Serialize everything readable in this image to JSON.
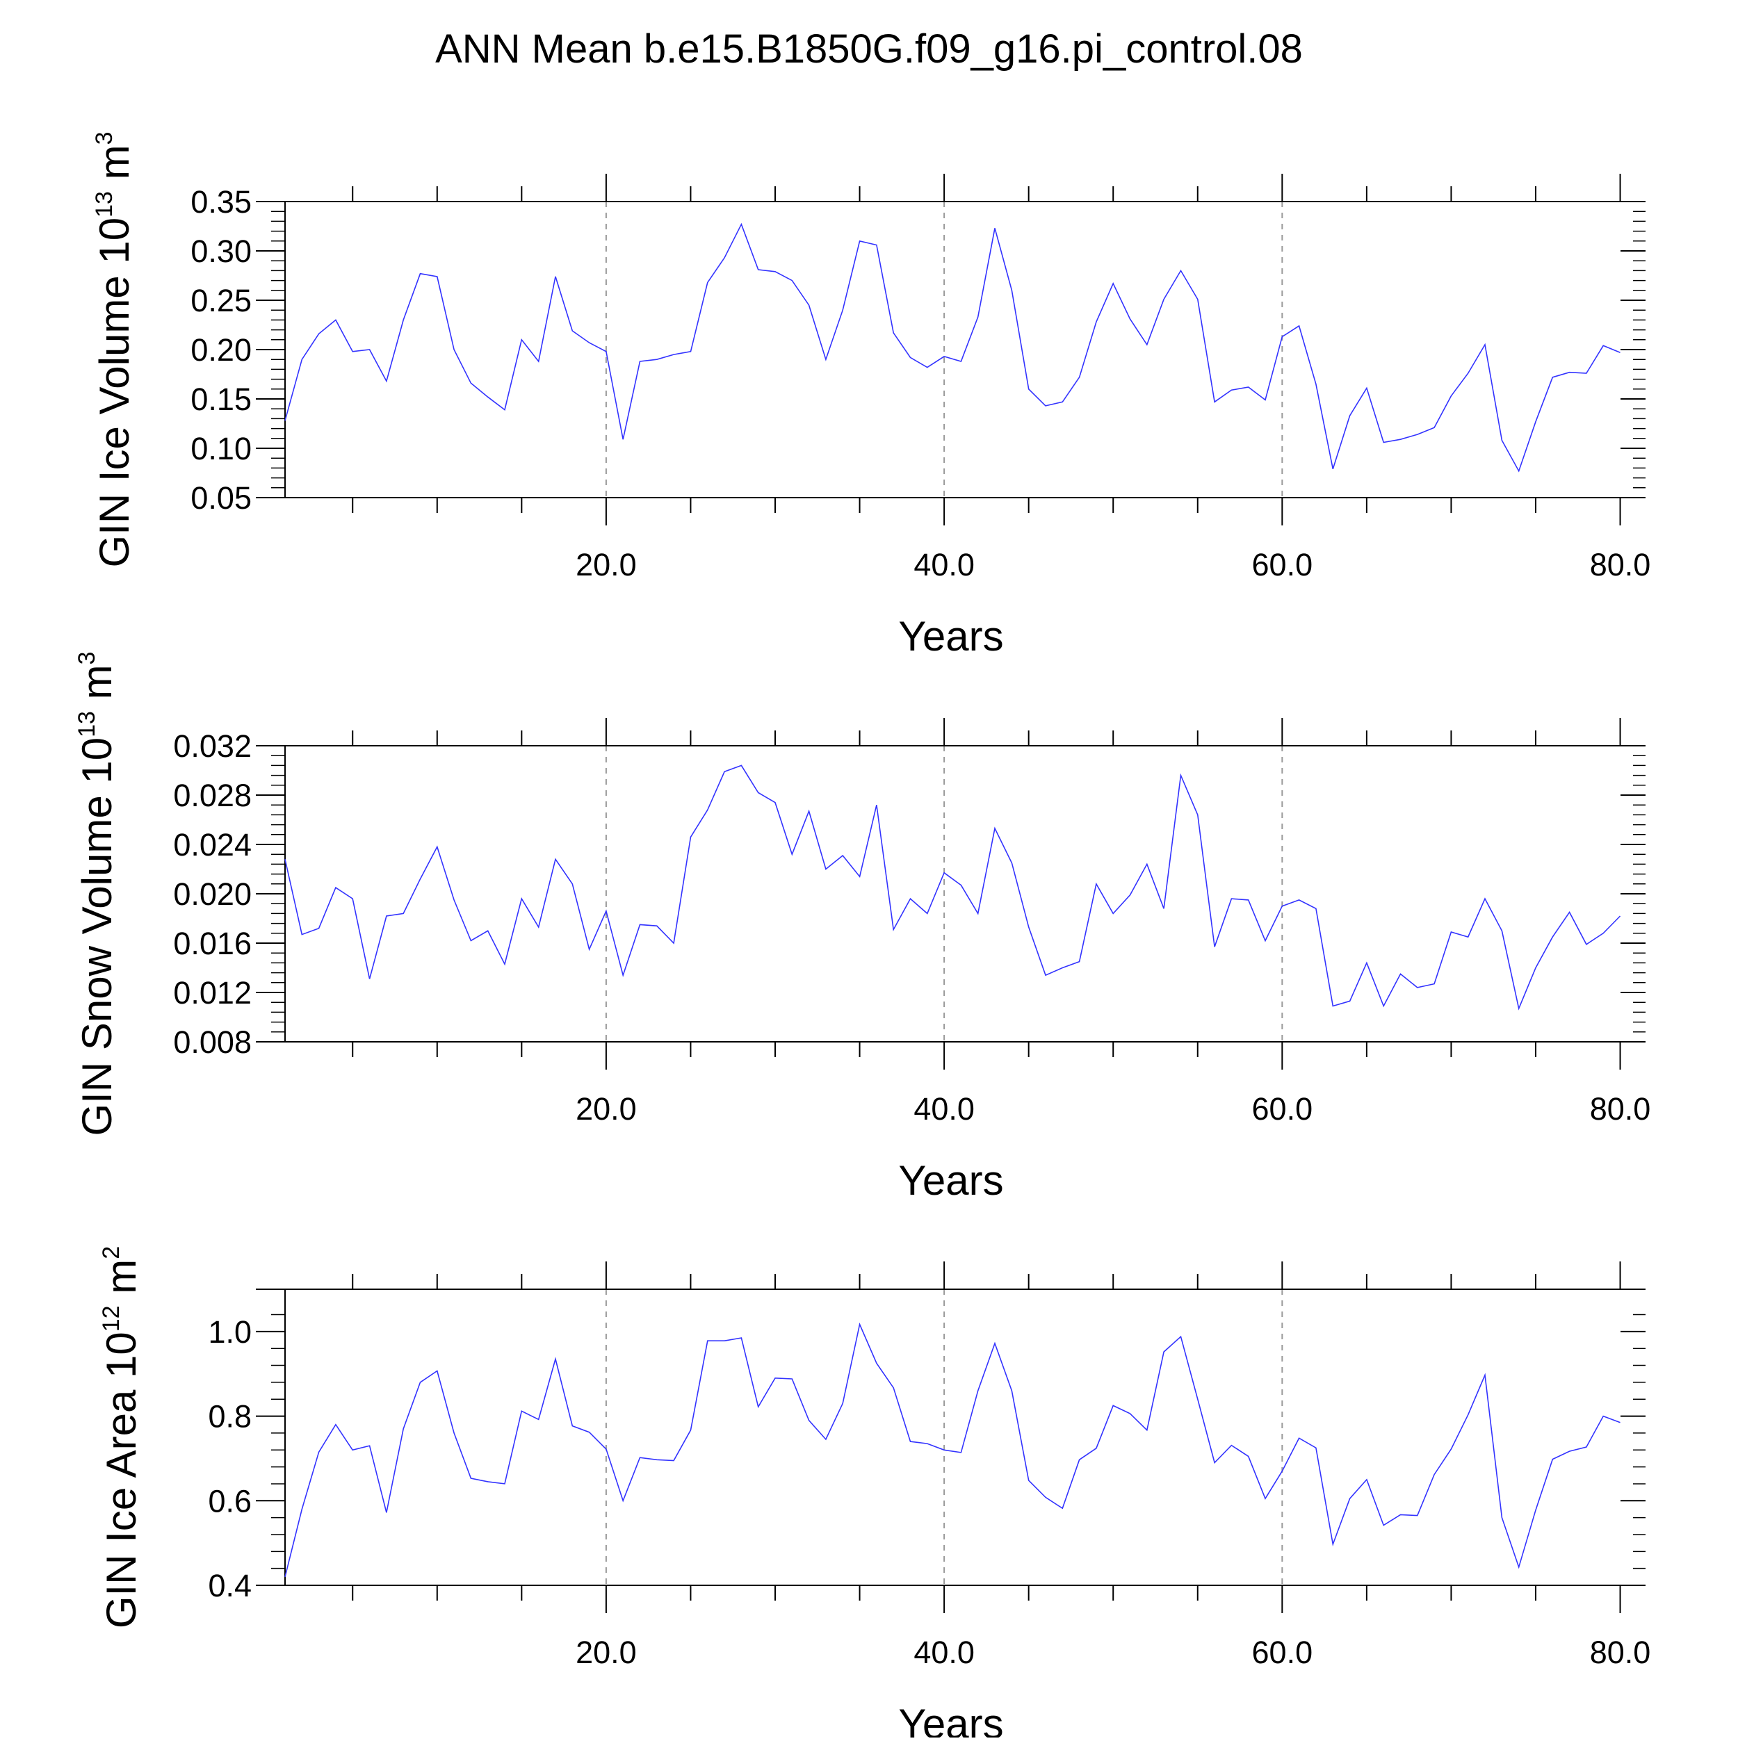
{
  "figure": {
    "title": "ANN Mean b.e15.B1850G.f09_g16.pi_control.08",
    "line_color": "#3333ff",
    "grid_color": "#999999"
  },
  "chart_data": [
    {
      "type": "line",
      "ylabel": "GIN Ice Volume 10",
      "ylabel_exp": "13",
      "ylabel_unit": " m",
      "ylabel_unit_exp": "3",
      "xlabel": "Years",
      "xlim": [
        1,
        81.5
      ],
      "ylim": [
        0.05,
        0.35
      ],
      "xticks": [
        20,
        40,
        60,
        80
      ],
      "xtick_labels": [
        "20.0",
        "40.0",
        "60.0",
        "80.0"
      ],
      "yticks": [
        0.05,
        0.1,
        0.15,
        0.2,
        0.25,
        0.3,
        0.35
      ],
      "ytick_labels": [
        "0.05",
        "0.10",
        "0.15",
        "0.20",
        "0.25",
        "0.30",
        "0.35"
      ],
      "grid": "vertical dashed at 20, 40, 60",
      "series": [
        {
          "x": [
            1,
            2,
            3,
            4,
            5,
            6,
            7,
            8,
            9,
            10,
            11,
            12,
            13,
            14,
            15,
            16,
            17,
            18,
            19,
            20,
            21,
            22,
            23,
            24,
            25,
            26,
            27,
            28,
            29,
            30,
            31,
            32,
            33,
            34,
            35,
            36,
            37,
            38,
            39,
            40,
            41,
            42,
            43,
            44,
            45,
            46,
            47,
            48,
            49,
            50,
            51,
            52,
            53,
            54,
            55,
            56,
            57,
            58,
            59,
            60,
            61,
            62,
            63,
            64,
            65,
            66,
            67,
            68,
            69,
            70,
            71,
            72,
            73,
            74,
            75,
            76,
            77,
            78,
            79,
            80
          ],
          "y": [
            0.128,
            0.19,
            0.216,
            0.23,
            0.198,
            0.2,
            0.168,
            0.23,
            0.277,
            0.274,
            0.2,
            0.166,
            0.152,
            0.139,
            0.21,
            0.188,
            0.274,
            0.219,
            0.207,
            0.198,
            0.109,
            0.188,
            0.19,
            0.195,
            0.198,
            0.268,
            0.293,
            0.327,
            0.281,
            0.279,
            0.27,
            0.245,
            0.19,
            0.24,
            0.31,
            0.306,
            0.217,
            0.192,
            0.182,
            0.193,
            0.188,
            0.233,
            0.323,
            0.26,
            0.16,
            0.143,
            0.147,
            0.172,
            0.228,
            0.267,
            0.231,
            0.205,
            0.251,
            0.28,
            0.251,
            0.147,
            0.159,
            0.162,
            0.149,
            0.213,
            0.224,
            0.165,
            0.079,
            0.133,
            0.161,
            0.106,
            0.109,
            0.114,
            0.121,
            0.153,
            0.176,
            0.205,
            0.108,
            0.077,
            0.127,
            0.172,
            0.177,
            0.176,
            0.204,
            0.197
          ]
        }
      ]
    },
    {
      "type": "line",
      "ylabel": "GIN Snow Volume 10",
      "ylabel_exp": "13",
      "ylabel_unit": " m",
      "ylabel_unit_exp": "3",
      "xlabel": "Years",
      "xlim": [
        1,
        81.5
      ],
      "ylim": [
        0.008,
        0.032
      ],
      "xticks": [
        20,
        40,
        60,
        80
      ],
      "xtick_labels": [
        "20.0",
        "40.0",
        "60.0",
        "80.0"
      ],
      "yticks": [
        0.008,
        0.012,
        0.016,
        0.02,
        0.024,
        0.028,
        0.032
      ],
      "ytick_labels": [
        "0.008",
        "0.012",
        "0.016",
        "0.020",
        "0.024",
        "0.028",
        "0.032"
      ],
      "grid": "vertical dashed at 20, 40, 60",
      "series": [
        {
          "x": [
            1,
            2,
            3,
            4,
            5,
            6,
            7,
            8,
            9,
            10,
            11,
            12,
            13,
            14,
            15,
            16,
            17,
            18,
            19,
            20,
            21,
            22,
            23,
            24,
            25,
            26,
            27,
            28,
            29,
            30,
            31,
            32,
            33,
            34,
            35,
            36,
            37,
            38,
            39,
            40,
            41,
            42,
            43,
            44,
            45,
            46,
            47,
            48,
            49,
            50,
            51,
            52,
            53,
            54,
            55,
            56,
            57,
            58,
            59,
            60,
            61,
            62,
            63,
            64,
            65,
            66,
            67,
            68,
            69,
            70,
            71,
            72,
            73,
            74,
            75,
            76,
            77,
            78,
            79,
            80
          ],
          "y": [
            0.0228,
            0.0167,
            0.0172,
            0.0205,
            0.0196,
            0.0131,
            0.0182,
            0.0184,
            0.0212,
            0.0238,
            0.0195,
            0.0162,
            0.017,
            0.0143,
            0.0196,
            0.0173,
            0.0228,
            0.0208,
            0.0155,
            0.0186,
            0.0134,
            0.0175,
            0.0174,
            0.016,
            0.0246,
            0.0268,
            0.0299,
            0.0304,
            0.0282,
            0.0274,
            0.0232,
            0.0267,
            0.022,
            0.0231,
            0.0214,
            0.0272,
            0.0171,
            0.0196,
            0.0184,
            0.0217,
            0.0207,
            0.0184,
            0.0253,
            0.0225,
            0.0173,
            0.0134,
            0.014,
            0.0145,
            0.0208,
            0.0184,
            0.0199,
            0.0224,
            0.0188,
            0.0296,
            0.0264,
            0.0157,
            0.0196,
            0.0195,
            0.0162,
            0.019,
            0.0195,
            0.0188,
            0.0109,
            0.0113,
            0.0144,
            0.0109,
            0.0135,
            0.0124,
            0.0127,
            0.0169,
            0.0165,
            0.0196,
            0.017,
            0.0107,
            0.014,
            0.0165,
            0.0185,
            0.0159,
            0.0168,
            0.0182
          ]
        }
      ]
    },
    {
      "type": "line",
      "ylabel": "GIN Ice Area 10",
      "ylabel_exp": "12",
      "ylabel_unit": " m",
      "ylabel_unit_exp": "2",
      "xlabel": "Years",
      "xlim": [
        1,
        81.5
      ],
      "ylim": [
        0.4,
        1.1
      ],
      "xticks": [
        20,
        40,
        60,
        80
      ],
      "xtick_labels": [
        "20.0",
        "40.0",
        "60.0",
        "80.0"
      ],
      "yticks": [
        0.4,
        0.6,
        0.8,
        1.0
      ],
      "ytick_labels": [
        "0.4",
        "0.6",
        "0.8",
        "1.0"
      ],
      "grid": "vertical dashed at 20, 40, 60",
      "series": [
        {
          "x": [
            1,
            2,
            3,
            4,
            5,
            6,
            7,
            8,
            9,
            10,
            11,
            12,
            13,
            14,
            15,
            16,
            17,
            18,
            19,
            20,
            21,
            22,
            23,
            24,
            25,
            26,
            27,
            28,
            29,
            30,
            31,
            32,
            33,
            34,
            35,
            36,
            37,
            38,
            39,
            40,
            41,
            42,
            43,
            44,
            45,
            46,
            47,
            48,
            49,
            50,
            51,
            52,
            53,
            54,
            55,
            56,
            57,
            58,
            59,
            60,
            61,
            62,
            63,
            64,
            65,
            66,
            67,
            68,
            69,
            70,
            71,
            72,
            73,
            74,
            75,
            76,
            77,
            78,
            79,
            80
          ],
          "y": [
            0.42,
            0.58,
            0.715,
            0.78,
            0.72,
            0.73,
            0.572,
            0.77,
            0.88,
            0.907,
            0.76,
            0.653,
            0.645,
            0.64,
            0.812,
            0.792,
            0.935,
            0.777,
            0.762,
            0.722,
            0.6,
            0.702,
            0.697,
            0.695,
            0.767,
            0.978,
            0.978,
            0.985,
            0.822,
            0.89,
            0.888,
            0.79,
            0.745,
            0.83,
            1.017,
            0.925,
            0.867,
            0.74,
            0.735,
            0.72,
            0.714,
            0.86,
            0.972,
            0.86,
            0.648,
            0.608,
            0.582,
            0.697,
            0.724,
            0.825,
            0.806,
            0.767,
            0.952,
            0.988,
            0.84,
            0.69,
            0.731,
            0.705,
            0.605,
            0.67,
            0.748,
            0.725,
            0.497,
            0.605,
            0.65,
            0.542,
            0.567,
            0.565,
            0.662,
            0.722,
            0.803,
            0.897,
            0.56,
            0.443,
            0.578,
            0.698,
            0.717,
            0.727,
            0.8,
            0.785
          ]
        }
      ]
    }
  ]
}
